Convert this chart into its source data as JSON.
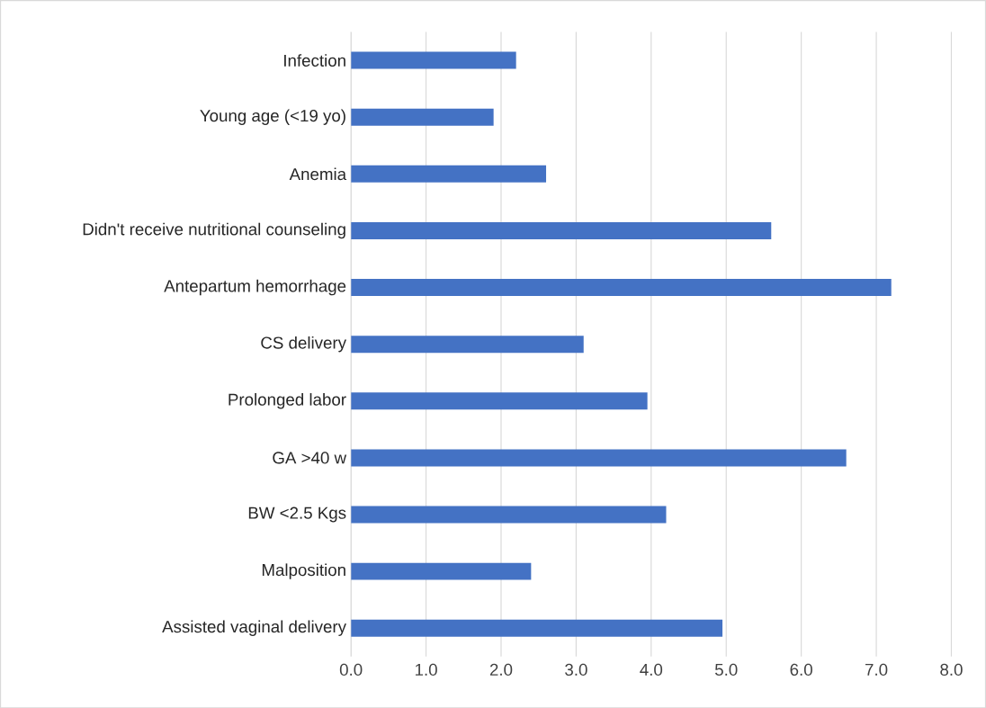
{
  "chart_data": {
    "type": "bar",
    "orientation": "horizontal",
    "categories": [
      "Infection",
      "Young age (<19 yo)",
      "Anemia",
      "Didn't receive nutritional counseling",
      "Antepartum hemorrhage",
      "CS delivery",
      "Prolonged labor",
      "GA >40 w",
      "BW <2.5 Kgs",
      "Malposition",
      "Assisted vaginal delivery"
    ],
    "values": [
      2.2,
      1.9,
      2.6,
      5.6,
      7.2,
      3.1,
      3.95,
      6.6,
      4.2,
      2.4,
      4.95
    ],
    "color": "#4472c4",
    "xlim": [
      0,
      8
    ],
    "xticks": [
      {
        "value": 0,
        "label": "0.0"
      },
      {
        "value": 1,
        "label": "1.0"
      },
      {
        "value": 2,
        "label": "2.0"
      },
      {
        "value": 3,
        "label": "3.0"
      },
      {
        "value": 4,
        "label": "4.0"
      },
      {
        "value": 5,
        "label": "5.0"
      },
      {
        "value": 6,
        "label": "6.0"
      },
      {
        "value": 7,
        "label": "7.0"
      },
      {
        "value": 8,
        "label": "8.0"
      }
    ],
    "grid": "x"
  }
}
